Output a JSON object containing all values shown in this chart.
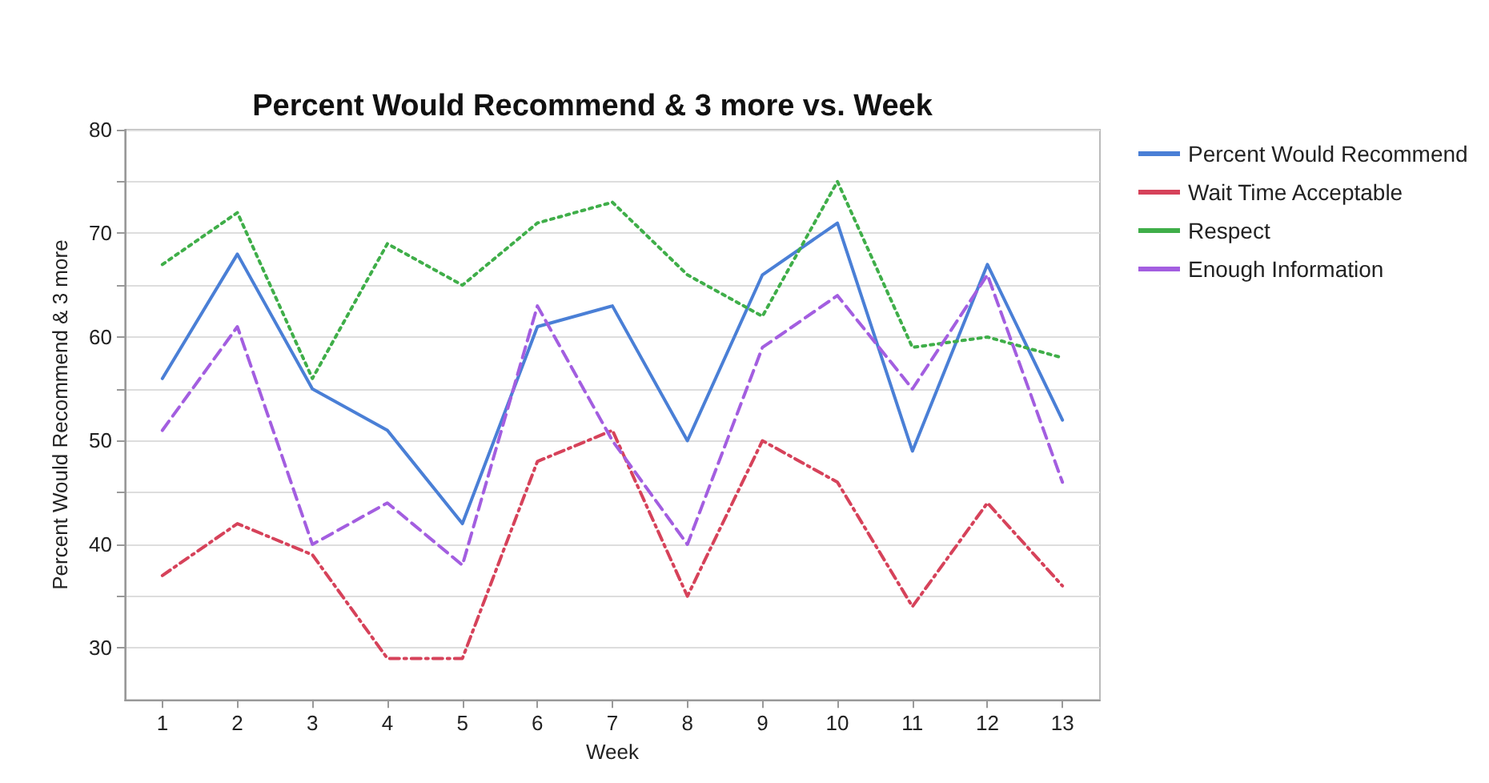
{
  "chart_data": {
    "type": "line",
    "title": "Percent Would Recommend & 3 more vs. Week",
    "xlabel": "Week",
    "ylabel": "Percent Would Recommend & 3 more",
    "x": [
      1,
      2,
      3,
      4,
      5,
      6,
      7,
      8,
      9,
      10,
      11,
      12,
      13
    ],
    "series": [
      {
        "name": "Percent Would Recommend",
        "color": "#4a7fd6",
        "line_style": "solid",
        "values": [
          56,
          68,
          55,
          51,
          42,
          61,
          63,
          50,
          66,
          71,
          49,
          67,
          52
        ]
      },
      {
        "name": "Wait Time Acceptable",
        "color": "#d6425a",
        "line_style": "dashdot",
        "values": [
          37,
          42,
          39,
          29,
          29,
          48,
          51,
          35,
          50,
          46,
          34,
          44,
          36
        ]
      },
      {
        "name": "Respect",
        "color": "#3fae49",
        "line_style": "dotted",
        "values": [
          67,
          72,
          56,
          69,
          65,
          71,
          73,
          66,
          62,
          75,
          59,
          60,
          58
        ]
      },
      {
        "name": "Enough Information",
        "color": "#a35ee0",
        "line_style": "dashed",
        "values": [
          51,
          61,
          40,
          44,
          38,
          63,
          50,
          40,
          59,
          64,
          55,
          66,
          46
        ]
      }
    ],
    "xlim": [
      0.5,
      13.5
    ],
    "xticks": [
      1,
      2,
      3,
      4,
      5,
      6,
      7,
      8,
      9,
      10,
      11,
      12,
      13
    ],
    "ylim": [
      25,
      80
    ],
    "yticks": [
      30,
      {
        "value": 35,
        "label": null
      },
      40,
      {
        "value": 45,
        "label": null
      },
      50,
      {
        "value": 55,
        "label": null
      },
      60,
      {
        "value": 65,
        "label": null
      },
      70,
      {
        "value": 75,
        "label": null
      },
      80
    ],
    "grid": "y",
    "legend": "top right",
    "marker": "none"
  }
}
